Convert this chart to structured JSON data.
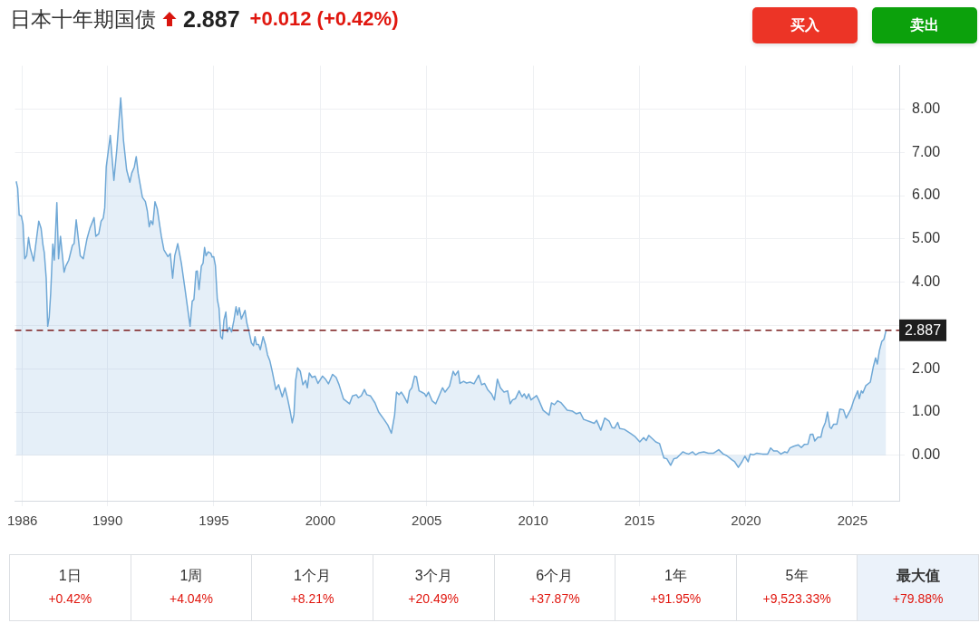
{
  "chart_data": [
    {
      "type": "area",
      "title": "日本十年期国债",
      "annotations": [
        "2.887",
        "+0.012 (+0.42%)",
        "买入",
        "卖出"
      ],
      "color": "#6fa8d6",
      "x": [
        1985.71,
        1985.78,
        1985.85,
        1985.95,
        1986.03,
        1986.11,
        1986.2,
        1986.29,
        1986.37,
        1986.53,
        1986.77,
        1986.88,
        1986.97,
        1987.03,
        1987.12,
        1987.19,
        1987.26,
        1987.33,
        1987.43,
        1987.5,
        1987.62,
        1987.7,
        1987.79,
        1987.96,
        1988.04,
        1988.18,
        1988.35,
        1988.43,
        1988.53,
        1988.72,
        1988.86,
        1989.03,
        1989.17,
        1989.37,
        1989.45,
        1989.59,
        1989.7,
        1989.8,
        1989.87,
        1989.94,
        1990.13,
        1990.3,
        1990.44,
        1990.62,
        1990.75,
        1990.9,
        1991.05,
        1991.14,
        1991.26,
        1991.35,
        1991.44,
        1991.64,
        1991.78,
        1991.87,
        1991.96,
        1992.04,
        1992.13,
        1992.23,
        1992.34,
        1992.53,
        1992.65,
        1992.84,
        1992.95,
        1993.06,
        1993.16,
        1993.3,
        1993.47,
        1993.65,
        1993.88,
        1993.98,
        1994.06,
        1994.16,
        1994.22,
        1994.3,
        1994.41,
        1994.49,
        1994.56,
        1994.63,
        1994.73,
        1994.85,
        1994.92,
        1994.99,
        1995.07,
        1995.16,
        1995.24,
        1995.32,
        1995.4,
        1995.47,
        1995.56,
        1995.63,
        1995.73,
        1995.83,
        1995.94,
        1996.04,
        1996.11,
        1996.19,
        1996.29,
        1996.46,
        1996.55,
        1996.64,
        1996.76,
        1996.86,
        1996.93,
        1997.0,
        1997.1,
        1997.18,
        1997.31,
        1997.42,
        1997.52,
        1997.63,
        1997.74,
        1997.91,
        1998.04,
        1998.21,
        1998.34,
        1998.46,
        1998.59,
        1998.68,
        1998.76,
        1998.84,
        1998.93,
        1999.06,
        1999.18,
        1999.31,
        1999.39,
        1999.48,
        1999.61,
        1999.75,
        1999.89,
        2000.1,
        2000.24,
        2000.38,
        2000.57,
        2000.74,
        2000.88,
        2001.09,
        2001.37,
        2001.51,
        2001.69,
        2001.79,
        2001.93,
        2002.07,
        2002.18,
        2002.36,
        2002.57,
        2002.74,
        2002.99,
        2003.17,
        2003.34,
        2003.49,
        2003.58,
        2003.7,
        2003.8,
        2003.91,
        2004.09,
        2004.19,
        2004.3,
        2004.43,
        2004.52,
        2004.64,
        2004.76,
        2004.9,
        2004.97,
        2005.08,
        2005.25,
        2005.42,
        2005.56,
        2005.74,
        2005.86,
        2006.07,
        2006.24,
        2006.34,
        2006.48,
        2006.56,
        2006.73,
        2006.87,
        2007.04,
        2007.22,
        2007.44,
        2007.58,
        2007.72,
        2007.86,
        2008.04,
        2008.18,
        2008.32,
        2008.46,
        2008.63,
        2008.8,
        2008.92,
        2009.03,
        2009.17,
        2009.34,
        2009.48,
        2009.58,
        2009.69,
        2009.79,
        2009.9,
        2010.16,
        2010.26,
        2010.47,
        2010.75,
        2010.86,
        2011.0,
        2011.15,
        2011.32,
        2011.6,
        2011.85,
        2012.02,
        2012.21,
        2012.37,
        2012.65,
        2012.87,
        2012.98,
        2013.18,
        2013.36,
        2013.57,
        2013.71,
        2013.83,
        2013.97,
        2014.07,
        2014.28,
        2014.56,
        2014.77,
        2015.01,
        2015.19,
        2015.31,
        2015.43,
        2015.76,
        2015.94,
        2016.14,
        2016.28,
        2016.46,
        2016.61,
        2016.75,
        2017.03,
        2017.17,
        2017.31,
        2017.49,
        2017.63,
        2017.8,
        2018.02,
        2018.23,
        2018.48,
        2018.72,
        2018.93,
        2019.1,
        2019.33,
        2019.47,
        2019.64,
        2019.81,
        2019.95,
        2020.1,
        2020.2,
        2020.34,
        2020.51,
        2020.77,
        2021.02,
        2021.16,
        2021.3,
        2021.47,
        2021.64,
        2021.82,
        2021.94,
        2022.07,
        2022.25,
        2022.46,
        2022.6,
        2022.74,
        2022.91,
        2023.02,
        2023.14,
        2023.23,
        2023.38,
        2023.52,
        2023.61,
        2023.73,
        2023.83,
        2023.94,
        2024.01,
        2024.12,
        2024.27,
        2024.41,
        2024.58,
        2024.71,
        2024.93,
        2025.07,
        2025.25,
        2025.32,
        2025.42,
        2025.49,
        2025.63,
        2025.84,
        2025.98,
        2026.09,
        2026.17,
        2026.27,
        2026.38,
        2026.48,
        2026.58
      ],
      "values": [
        6.33,
        6.17,
        5.55,
        5.53,
        5.34,
        4.54,
        4.61,
        5.03,
        4.78,
        4.49,
        5.41,
        5.24,
        4.85,
        4.68,
        4.09,
        2.98,
        3.19,
        3.74,
        4.88,
        4.51,
        5.84,
        4.54,
        5.06,
        4.23,
        4.37,
        4.51,
        4.85,
        4.89,
        5.44,
        4.61,
        4.54,
        4.99,
        5.24,
        5.49,
        5.06,
        5.12,
        5.41,
        5.48,
        5.72,
        6.66,
        7.39,
        6.35,
        7.08,
        8.26,
        7.28,
        6.59,
        6.31,
        6.52,
        6.66,
        6.9,
        6.52,
        5.96,
        5.86,
        5.65,
        5.28,
        5.42,
        5.33,
        5.86,
        5.69,
        5.06,
        4.75,
        4.59,
        4.66,
        4.09,
        4.61,
        4.89,
        4.44,
        3.81,
        2.98,
        3.56,
        3.6,
        4.25,
        4.26,
        3.83,
        4.37,
        4.44,
        4.8,
        4.61,
        4.7,
        4.67,
        4.58,
        4.59,
        4.38,
        3.6,
        3.4,
        2.74,
        2.69,
        3.12,
        3.31,
        2.85,
        2.96,
        2.85,
        3.12,
        3.43,
        3.24,
        3.41,
        3.15,
        3.35,
        3.05,
        2.88,
        2.6,
        2.53,
        2.74,
        2.56,
        2.56,
        2.44,
        2.74,
        2.56,
        2.32,
        2.18,
        1.94,
        1.52,
        1.63,
        1.35,
        1.56,
        1.31,
        1.0,
        0.75,
        0.94,
        1.73,
        2.02,
        1.94,
        1.63,
        1.73,
        1.56,
        1.9,
        1.8,
        1.83,
        1.66,
        1.83,
        1.76,
        1.65,
        1.87,
        1.8,
        1.63,
        1.3,
        1.19,
        1.37,
        1.4,
        1.33,
        1.38,
        1.52,
        1.4,
        1.37,
        1.21,
        1.0,
        0.83,
        0.7,
        0.51,
        0.93,
        1.46,
        1.4,
        1.46,
        1.38,
        1.21,
        1.49,
        1.56,
        1.83,
        1.81,
        1.49,
        1.46,
        1.42,
        1.36,
        1.46,
        1.26,
        1.19,
        1.35,
        1.56,
        1.46,
        1.6,
        1.94,
        1.85,
        1.95,
        1.66,
        1.71,
        1.67,
        1.69,
        1.65,
        1.85,
        1.63,
        1.66,
        1.52,
        1.42,
        1.28,
        1.76,
        1.56,
        1.46,
        1.49,
        1.19,
        1.28,
        1.31,
        1.49,
        1.35,
        1.42,
        1.31,
        1.42,
        1.28,
        1.38,
        1.28,
        1.04,
        0.93,
        1.21,
        1.17,
        1.26,
        1.21,
        1.04,
        1.02,
        0.96,
        0.99,
        0.83,
        0.78,
        0.74,
        0.81,
        0.58,
        0.86,
        0.79,
        0.64,
        0.63,
        0.76,
        0.62,
        0.6,
        0.51,
        0.44,
        0.31,
        0.41,
        0.34,
        0.46,
        0.31,
        0.27,
        -0.06,
        -0.08,
        -0.23,
        -0.08,
        -0.06,
        0.08,
        0.05,
        0.03,
        0.08,
        0.01,
        0.06,
        0.08,
        0.05,
        0.05,
        0.13,
        0.03,
        -0.01,
        -0.1,
        -0.15,
        -0.28,
        -0.15,
        -0.02,
        -0.15,
        0.03,
        0.01,
        0.05,
        0.03,
        0.03,
        0.17,
        0.1,
        0.1,
        0.03,
        0.08,
        0.06,
        0.17,
        0.21,
        0.24,
        0.18,
        0.25,
        0.26,
        0.48,
        0.49,
        0.33,
        0.42,
        0.42,
        0.62,
        0.76,
        1.0,
        0.65,
        0.62,
        0.72,
        0.72,
        1.07,
        1.05,
        0.86,
        1.07,
        1.28,
        1.49,
        1.31,
        1.49,
        1.44,
        1.61,
        1.69,
        2.04,
        2.25,
        2.11,
        2.42,
        2.63,
        2.68,
        2.887
      ],
      "xlim": [
        1985.65,
        2027.2
      ],
      "xticks": [
        1986,
        1990,
        1995,
        2000,
        2005,
        2010,
        2015,
        2020,
        2025
      ],
      "ylim": [
        -1.05,
        9.0
      ],
      "yticks": [
        {
          "value": 0,
          "label": "0.00"
        },
        {
          "value": 1,
          "label": "1.00"
        },
        {
          "value": 2,
          "label": "2.00"
        },
        {
          "value": 3,
          "label": null
        },
        {
          "value": 4,
          "label": "4.00"
        },
        {
          "value": 5,
          "label": "5.00"
        },
        {
          "value": 6,
          "label": "6.00"
        },
        {
          "value": 7,
          "label": "7.00"
        },
        {
          "value": 8,
          "label": "8.00"
        }
      ],
      "grid": true,
      "ref_lines": [
        {
          "axis": "y",
          "value": 2.887,
          "label": "2.887",
          "color": "#7b1d1d",
          "line_style": "dashed"
        }
      ]
    },
    {
      "type": "other",
      "annotations": [
        "1日",
        "+0.42%",
        "1周",
        "+4.04%",
        "1个月",
        "+8.21%",
        "3个月",
        "+20.49%",
        "6个月",
        "+37.87%",
        "1年",
        "+91.95%",
        "5年",
        "+9,523.33%",
        "最大值",
        "+79.88%"
      ]
    }
  ]
}
